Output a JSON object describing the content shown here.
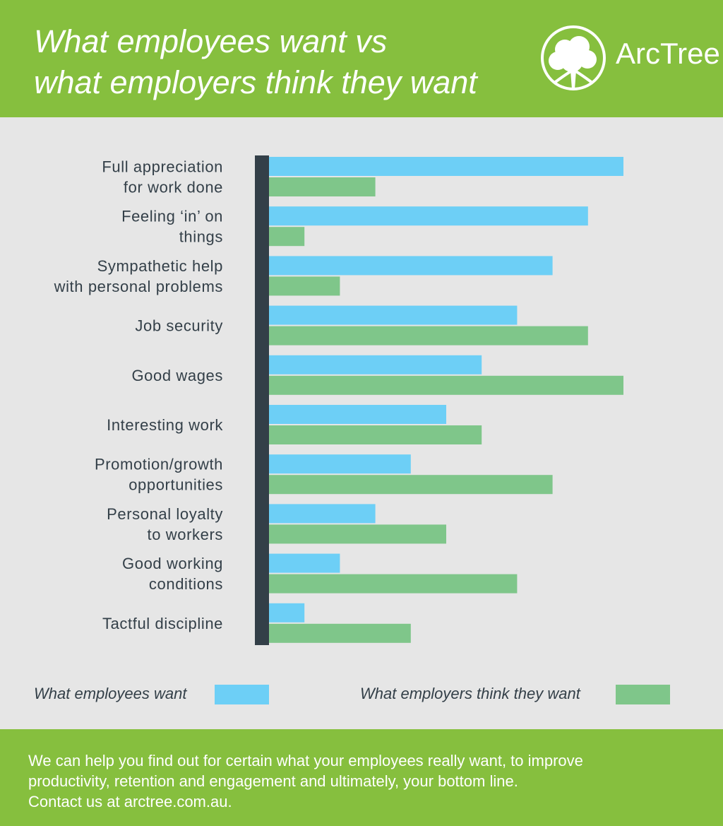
{
  "header": {
    "title_line1": "What employees want vs",
    "title_line2": "what employers think they want",
    "logo_name": "ArcTree",
    "background_color": "#86bf3e"
  },
  "chart_data": {
    "type": "bar",
    "orientation": "horizontal",
    "categories": [
      [
        "Full appreciation",
        "for work done"
      ],
      [
        "Feeling ‘in’ on",
        "things"
      ],
      [
        "Sympathetic help",
        "with personal problems"
      ],
      [
        "Job security"
      ],
      [
        "Good wages"
      ],
      [
        "Interesting work"
      ],
      [
        "Promotion/growth",
        "opportunities"
      ],
      [
        "Personal loyalty",
        "to workers"
      ],
      [
        "Good working",
        "conditions"
      ],
      [
        "Tactful discipline"
      ]
    ],
    "series": [
      {
        "name": "What employees want",
        "color": "#6dcff6",
        "values": [
          1,
          2,
          3,
          4,
          5,
          6,
          7,
          8,
          9,
          10
        ]
      },
      {
        "name": "What employers think they want",
        "color": "#7fc68a",
        "values": [
          8,
          10,
          9,
          2,
          1,
          5,
          3,
          6,
          4,
          7
        ]
      }
    ],
    "scale": "rank",
    "legend_position": "bottom",
    "grid": false
  },
  "legend": {
    "employees_label": "What employees want",
    "employers_label": "What employers think they want"
  },
  "footer": {
    "line1": "We can help you find out for certain what your employees really want, to improve",
    "line2": "productivity, retention and engagement and ultimately, your bottom line.",
    "line3": "Contact us at arctree.com.au."
  }
}
